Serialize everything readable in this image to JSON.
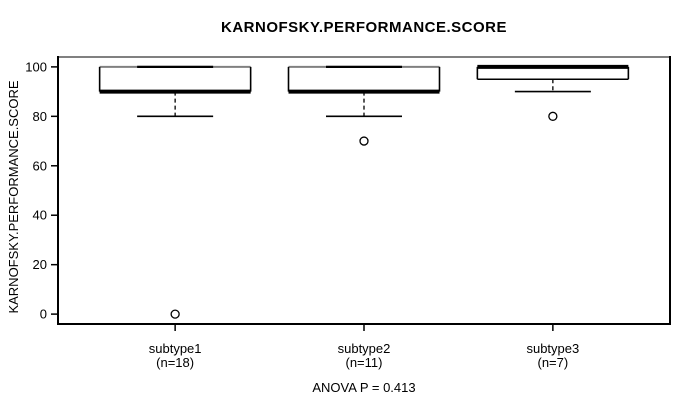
{
  "chart_data": {
    "type": "boxplot",
    "title": "KARNOFSKY.PERFORMANCE.SCORE",
    "ylabel": "KARNOFSKY.PERFORMANCE.SCORE",
    "xlabel": "",
    "annotation": "ANOVA P = 0.413",
    "ylim": [
      0,
      100
    ],
    "yticks": [
      0,
      20,
      40,
      60,
      80,
      100
    ],
    "grid": false,
    "legend": null,
    "groups": [
      {
        "label": "subtype1",
        "sublabel": "(n=18)",
        "n": 18,
        "stats": {
          "whisker_low": 80,
          "q1": 90,
          "median": 90,
          "q3": 100,
          "whisker_high": 100
        },
        "outliers": [
          0
        ]
      },
      {
        "label": "subtype2",
        "sublabel": "(n=11)",
        "n": 11,
        "stats": {
          "whisker_low": 80,
          "q1": 90,
          "median": 90,
          "q3": 100,
          "whisker_high": 100
        },
        "outliers": [
          70
        ]
      },
      {
        "label": "subtype3",
        "sublabel": "(n=7)",
        "n": 7,
        "stats": {
          "whisker_low": 90,
          "q1": 95,
          "median": 100,
          "q3": 100,
          "whisker_high": 100
        },
        "outliers": [
          80
        ]
      }
    ],
    "colors": {
      "line": "#000000",
      "muted_line": "#808080",
      "box_fill": "#ffffff",
      "background": "#ffffff"
    }
  }
}
